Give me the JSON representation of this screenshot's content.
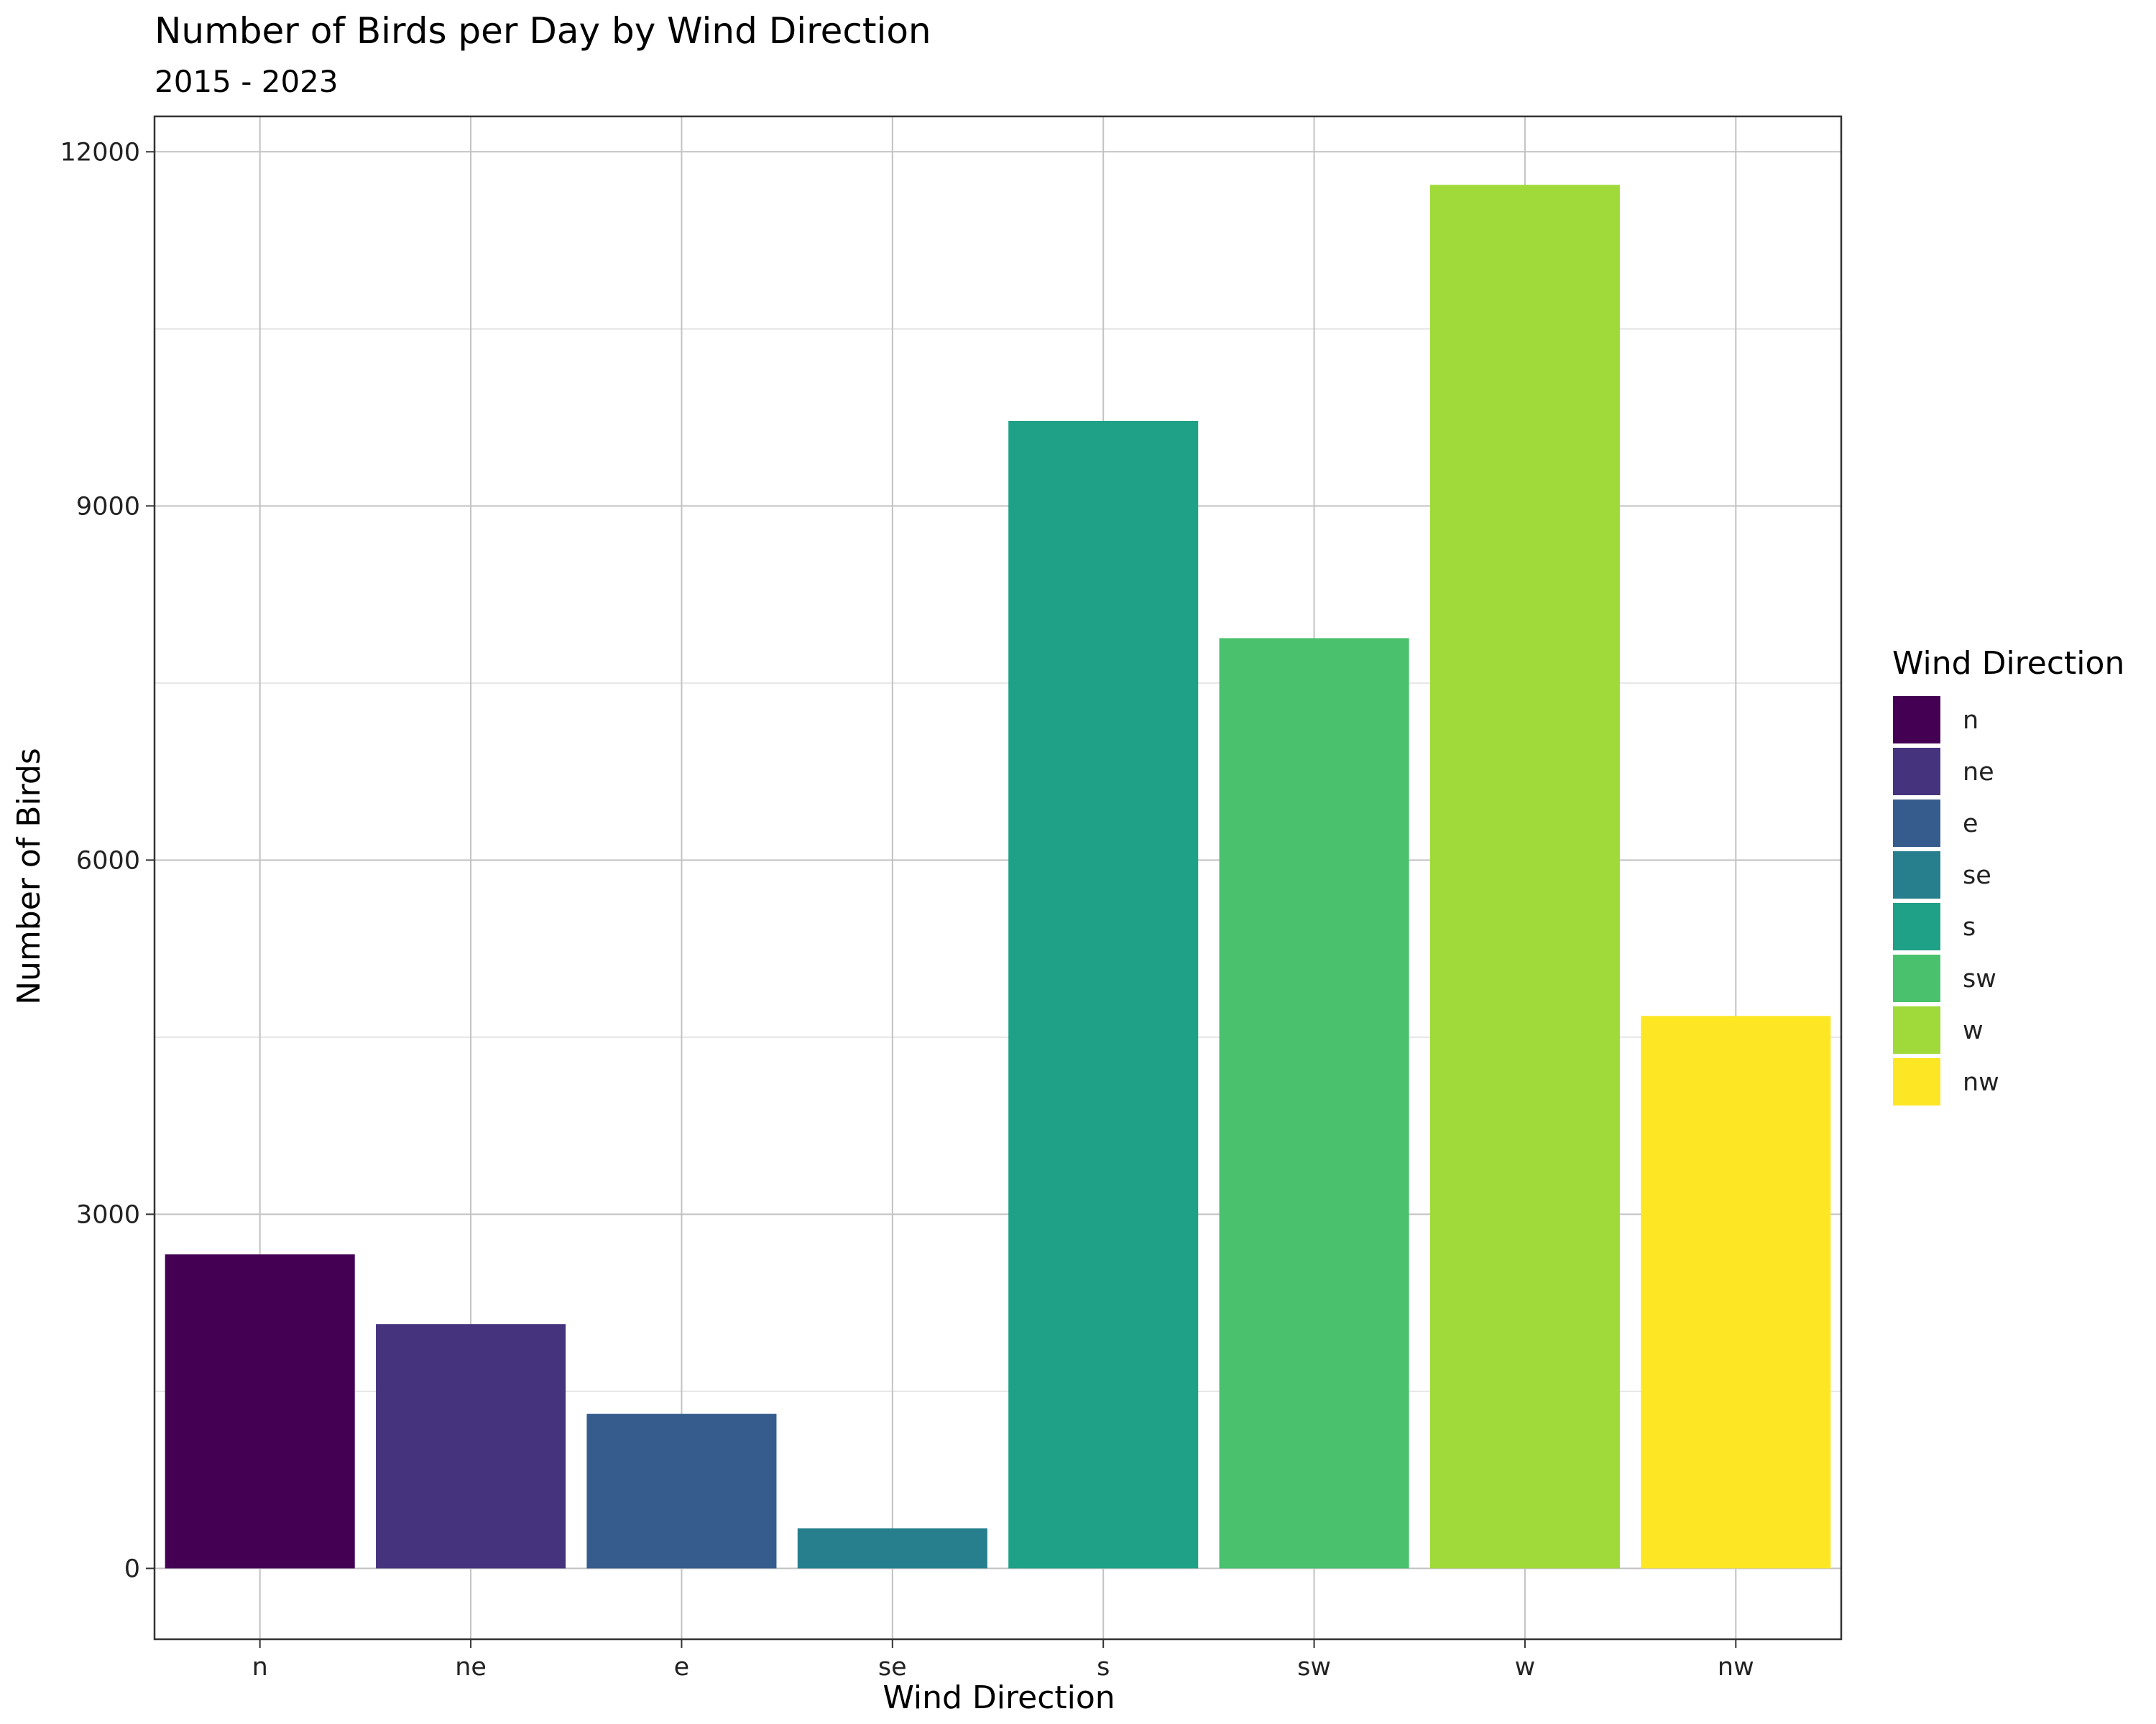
{
  "chart_data": {
    "type": "bar",
    "title": "Number of Birds per Day by Wind Direction",
    "subtitle": "2015 - 2023",
    "xlabel": "Wind Direction",
    "ylabel": "Number of Birds",
    "categories": [
      "n",
      "ne",
      "e",
      "se",
      "s",
      "sw",
      "w",
      "nw"
    ],
    "values": [
      2660,
      2070,
      1310,
      340,
      9720,
      7880,
      11720,
      4680
    ],
    "colors": [
      "#440154",
      "#46337E",
      "#365C8D",
      "#277F8E",
      "#1FA187",
      "#4AC16D",
      "#9FDA3A",
      "#FDE725"
    ],
    "yticks": [
      0,
      3000,
      6000,
      9000,
      12000
    ],
    "ylim": [
      -600,
      12300
    ],
    "grid": true,
    "legend": {
      "title": "Wind Direction",
      "position": "right",
      "labels": [
        "n",
        "ne",
        "e",
        "se",
        "s",
        "sw",
        "w",
        "nw"
      ]
    }
  }
}
